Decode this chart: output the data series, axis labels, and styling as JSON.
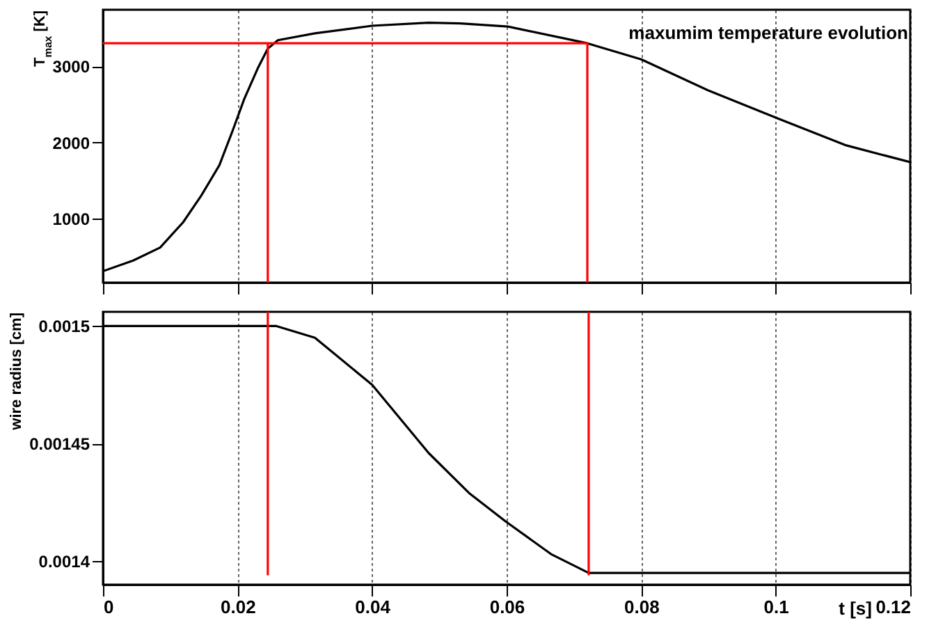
{
  "chart_data": [
    {
      "type": "line",
      "title": "maxumim temperature evolution",
      "ylabel": "T$_{max}$ [K]",
      "xlim": [
        0,
        0.12
      ],
      "xticks": [
        {
          "value": 0,
          "label": null
        },
        {
          "value": 0.02,
          "label": null
        },
        {
          "value": 0.04,
          "label": null
        },
        {
          "value": 0.06,
          "label": null
        },
        {
          "value": 0.08,
          "label": null
        },
        {
          "value": 0.1,
          "label": null
        },
        {
          "value": 0.12,
          "label": null
        }
      ],
      "ylim": [
        160,
        3740
      ],
      "yticks": [
        1000,
        2000,
        3000
      ],
      "grid": "x",
      "tick_labels": "y",
      "marker": "none",
      "line_style": "solid",
      "series": [
        {
          "color": "#000000",
          "x": [
            0,
            0.0045,
            0.0085,
            0.0119,
            0.0146,
            0.0173,
            0.0193,
            0.021,
            0.023,
            0.0245,
            0.026,
            0.0315,
            0.04,
            0.0484,
            0.0531,
            0.0602,
            0.072,
            0.08,
            0.09,
            0.1004,
            0.1105,
            0.12
          ],
          "values": [
            310,
            450,
            620,
            950,
            1300,
            1700,
            2160,
            2570,
            2970,
            3230,
            3340,
            3430,
            3530,
            3570,
            3560,
            3520,
            3300,
            3090,
            2680,
            2310,
            1960,
            1740
          ]
        },
        {
          "color": "#ff0000",
          "x": [
            0,
            0.072,
            0.072
          ],
          "values": [
            3300,
            3300,
            160
          ]
        },
        {
          "color": "#ff0000",
          "x": [
            0.0245,
            0.0245
          ],
          "values": [
            160,
            3300
          ]
        }
      ]
    },
    {
      "type": "line",
      "xlabel": "t [s]",
      "ylabel": "wire radius [cm]",
      "xlim": [
        0,
        0.12
      ],
      "xticks": [
        0,
        0.02,
        0.04,
        0.06,
        0.08,
        0.1,
        0.12
      ],
      "ylim": [
        0.00139,
        0.001506
      ],
      "yticks": [
        0.0014,
        0.00145,
        0.0015
      ],
      "grid": "x",
      "marker": "none",
      "line_style": "solid",
      "series": [
        {
          "color": "#000000",
          "x": [
            0,
            0.0257,
            0.0315,
            0.04,
            0.0484,
            0.0544,
            0.0598,
            0.0666,
            0.0722,
            0.12
          ],
          "values": [
            0.0015,
            0.0015,
            0.001495,
            0.001475,
            0.001446,
            0.001429,
            0.001417,
            0.001403,
            0.001395,
            0.001395
          ]
        },
        {
          "color": "#ff0000",
          "x": [
            0.0245,
            0.0245
          ],
          "values": [
            0.001394,
            0.001506
          ]
        },
        {
          "color": "#ff0000",
          "x": [
            0.0722,
            0.0722
          ],
          "values": [
            0.001394,
            0.001506
          ]
        }
      ]
    }
  ]
}
